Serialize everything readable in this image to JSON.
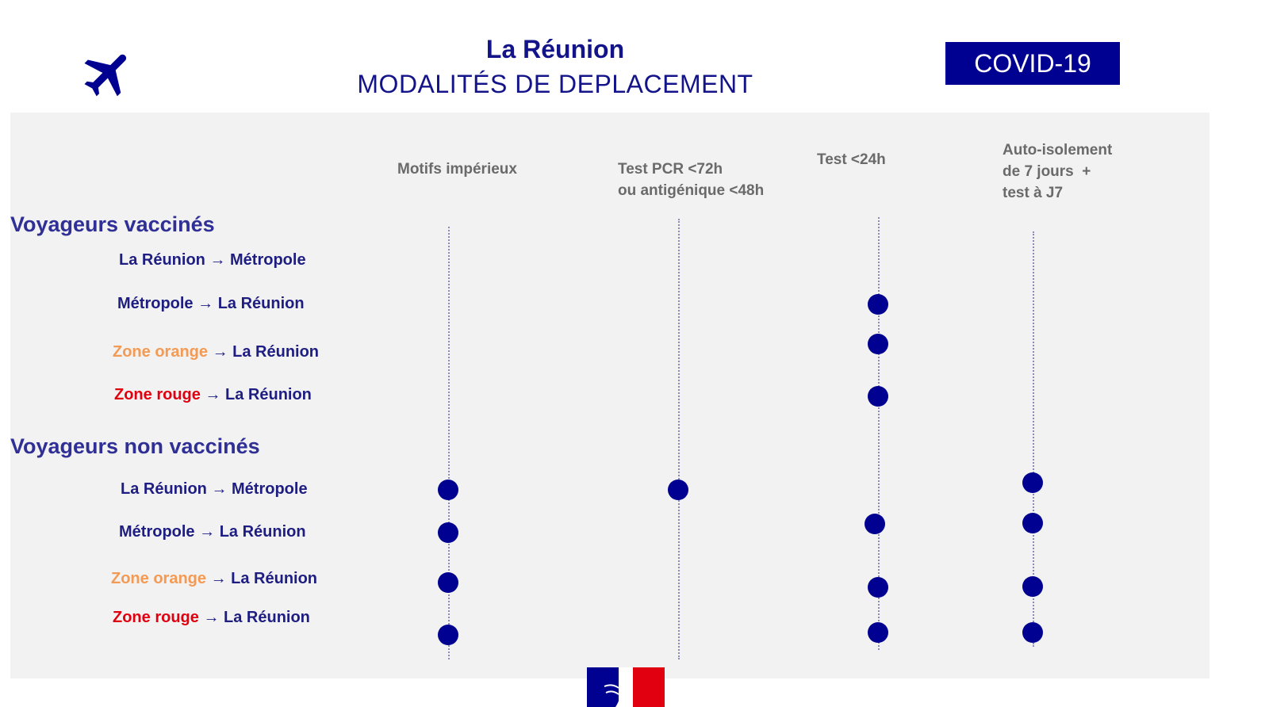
{
  "header": {
    "icon": "airplane-icon",
    "title": "La Réunion",
    "subtitle": "MODALITÉS DE DEPLACEMENT",
    "badge": "COVID-19"
  },
  "colors": {
    "navy": "#000091",
    "orange": "#f39a55",
    "red": "#e1000f"
  },
  "columns": [
    {
      "label": "Motifs impérieux"
    },
    {
      "label": "Test PCR <72h\nou antigénique <48h"
    },
    {
      "label": "Test <24h"
    },
    {
      "label": "Auto-isolement\nde 7 jours  +\ntest à J7"
    }
  ],
  "groups": [
    {
      "title": "Voyageurs vaccinés",
      "rows": [
        {
          "origin": "La Réunion",
          "origin_color": "navy",
          "arrow": "→",
          "dest": "Métropole",
          "marks": [
            false,
            false,
            false,
            false
          ]
        },
        {
          "origin": "Métropole",
          "origin_color": "navy",
          "arrow": "→",
          "dest": "La Réunion",
          "marks": [
            false,
            false,
            true,
            false
          ]
        },
        {
          "origin": "Zone orange",
          "origin_color": "orange",
          "arrow": "→",
          "dest": "La Réunion",
          "marks": [
            false,
            false,
            true,
            false
          ]
        },
        {
          "origin": "Zone rouge",
          "origin_color": "red",
          "arrow": "→",
          "dest": "La Réunion",
          "marks": [
            false,
            false,
            true,
            false
          ]
        }
      ]
    },
    {
      "title": "Voyageurs non vaccinés",
      "rows": [
        {
          "origin": "La Réunion",
          "origin_color": "navy",
          "arrow": "→",
          "dest": "Métropole",
          "marks": [
            true,
            true,
            false,
            true
          ]
        },
        {
          "origin": "Métropole",
          "origin_color": "navy",
          "arrow": "→",
          "dest": "La Réunion",
          "marks": [
            true,
            false,
            true,
            true
          ]
        },
        {
          "origin": "Zone orange",
          "origin_color": "orange",
          "arrow": "→",
          "dest": "La Réunion",
          "marks": [
            true,
            false,
            true,
            true
          ]
        },
        {
          "origin": "Zone rouge",
          "origin_color": "red",
          "arrow": "→",
          "dest": "La Réunion",
          "marks": [
            true,
            false,
            true,
            true
          ]
        }
      ]
    }
  ],
  "footer": {
    "logo": "Marianne (République Française)"
  }
}
